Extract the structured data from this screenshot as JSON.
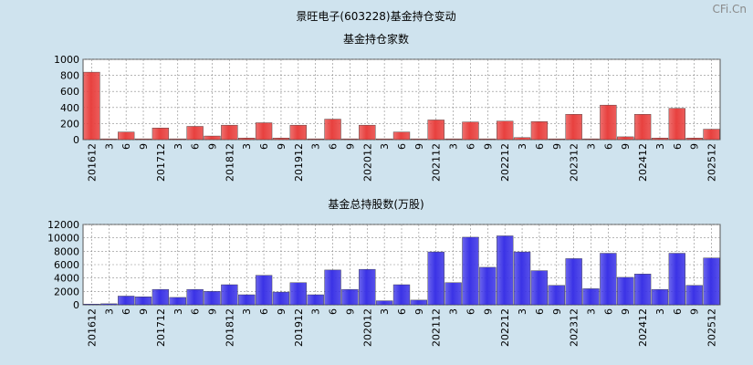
{
  "page_title": "景旺电子(603228)基金持仓变动",
  "watermark": "CFi.Cn",
  "colors": {
    "background": "#cfe3ee",
    "plot_background": "#ffffff",
    "grid": "#8a8a8a",
    "bar_red": "#e8413f",
    "bar_blue": "#3b33e6"
  },
  "chart_data": [
    {
      "type": "bar",
      "title": "基金持仓家数",
      "xlabel": "",
      "ylabel": "",
      "ylim": [
        0,
        1000
      ],
      "yticks": [
        0,
        200,
        400,
        600,
        800,
        1000
      ],
      "grid": true,
      "categories": [
        "201612",
        "3",
        "6",
        "9",
        "201712",
        "3",
        "6",
        "9",
        "201812",
        "3",
        "6",
        "9",
        "201912",
        "3",
        "6",
        "9",
        "202012",
        "3",
        "6",
        "9",
        "202112",
        "3",
        "6",
        "9",
        "202212",
        "3",
        "6",
        "9",
        "202312",
        "3",
        "6",
        "9",
        "202412",
        "3",
        "6",
        "9",
        "202512"
      ],
      "values": [
        840,
        10,
        95,
        10,
        145,
        10,
        165,
        45,
        180,
        20,
        210,
        20,
        180,
        10,
        255,
        10,
        180,
        10,
        95,
        10,
        245,
        10,
        220,
        10,
        230,
        25,
        225,
        10,
        315,
        10,
        430,
        35,
        315,
        20,
        390,
        20,
        130
      ],
      "color": "#e8413f"
    },
    {
      "type": "bar",
      "title": "基金总持股数(万股)",
      "xlabel": "",
      "ylabel": "",
      "ylim": [
        0,
        12000
      ],
      "yticks": [
        0,
        2000,
        4000,
        6000,
        8000,
        10000,
        12000
      ],
      "grid": true,
      "categories": [
        "201612",
        "3",
        "6",
        "9",
        "201712",
        "3",
        "6",
        "9",
        "201812",
        "3",
        "6",
        "9",
        "201912",
        "3",
        "6",
        "9",
        "202012",
        "3",
        "6",
        "9",
        "202112",
        "3",
        "6",
        "9",
        "202212",
        "3",
        "6",
        "9",
        "202312",
        "3",
        "6",
        "9",
        "202412",
        "3",
        "6",
        "9",
        "202512"
      ],
      "values": [
        100,
        150,
        1300,
        1200,
        2300,
        1100,
        2300,
        2000,
        3000,
        1500,
        4400,
        1900,
        3300,
        1500,
        5200,
        2300,
        5300,
        600,
        3000,
        700,
        7900,
        3300,
        10100,
        5600,
        10300,
        7900,
        5100,
        2900,
        6900,
        2400,
        7700,
        4100,
        4600,
        2300,
        7700,
        2900,
        7000
      ],
      "color": "#3b33e6"
    }
  ]
}
